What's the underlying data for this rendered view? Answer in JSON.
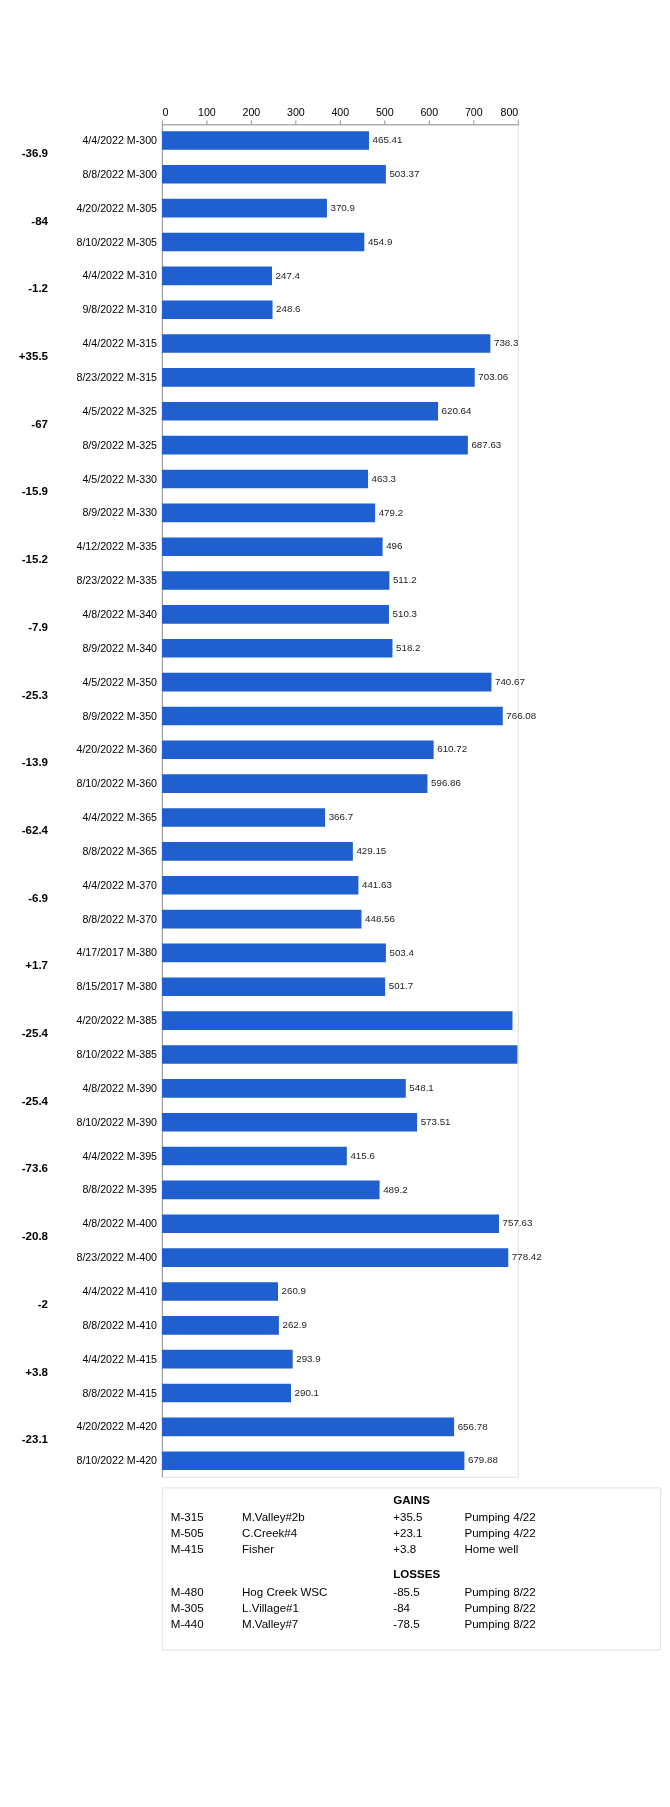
{
  "chart_data": {
    "type": "bar",
    "orientation": "horizontal",
    "categories": [
      "4/4/2022 M-300",
      "8/8/2022 M-300",
      "4/20/2022 M-305",
      "8/10/2022 M-305",
      "4/4/2022 M-310",
      "9/8/2022 M-310",
      "4/4/2022 M-315",
      "8/23/2022 M-315",
      "4/5/2022 M-325",
      "8/9/2022 M-325",
      "4/5/2022 M-330",
      "8/9/2022 M-330",
      "4/12/2022 M-335",
      "8/23/2022 M-335",
      "4/8/2022 M-340",
      "8/9/2022 M-340",
      "4/5/2022 M-350",
      "8/9/2022 M-350",
      "4/20/2022 M-360",
      "8/10/2022 M-360",
      "4/4/2022 M-365",
      "8/8/2022 M-365",
      "4/4/2022 M-370",
      "8/8/2022 M-370",
      "4/17/2017 M-380",
      "8/15/2017 M-380",
      "4/20/2022 M-385",
      "8/10/2022 M-385",
      "4/8/2022 M-390",
      "8/10/2022 M-390",
      "4/4/2022 M-395",
      "8/8/2022 M-395",
      "4/8/2022 M-400",
      "8/23/2022 M-400",
      "4/4/2022 M-410",
      "8/8/2022 M-410",
      "4/4/2022 M-415",
      "8/8/2022 M-415",
      "4/20/2022 M-420",
      "8/10/2022 M-420"
    ],
    "values": [
      465.41,
      503.37,
      370.9,
      454.9,
      247.4,
      248.6,
      738.3,
      703.06,
      620.64,
      687.63,
      463.3,
      479.2,
      496,
      511.2,
      510.3,
      518.2,
      740.67,
      766.08,
      610.72,
      596.86,
      366.7,
      429.15,
      441.63,
      448.56,
      503.4,
      501.7,
      788,
      799,
      548.1,
      573.51,
      415.6,
      489.2,
      757.63,
      778.42,
      260.9,
      262.9,
      293.9,
      290.1,
      656.78,
      679.88
    ],
    "value_labels": [
      "465.41",
      "503.37",
      "370.9",
      "454.9",
      "247.4",
      "248.6",
      "738.3",
      "703.06",
      "620.64",
      "687.63",
      "463.3",
      "479.2",
      "496",
      "511.2",
      "510.3",
      "518.2",
      "740.67",
      "766.08",
      "610.72",
      "596.86",
      "366.7",
      "429.15",
      "441.63",
      "448.56",
      "503.4",
      "501.7",
      null,
      null,
      "548.1",
      "573.51",
      "415.6",
      "489.2",
      "757.63",
      "778.42",
      "260.9",
      "262.9",
      "293.9",
      "290.1",
      "656.78",
      "679.88"
    ],
    "color": "#1f5fcf",
    "xlim": [
      0,
      800
    ],
    "xticks": [
      0,
      100,
      200,
      300,
      400,
      500,
      600,
      700,
      800
    ],
    "grid": false,
    "annotations": [
      "-36.9",
      "-84",
      "-1.2",
      "+35.5",
      "-67",
      "-15.9",
      "-15.2",
      "-7.9",
      "-25.3",
      "-13.9",
      "-62.4",
      "-6.9",
      "+1.7",
      "-25.4",
      "-25.4",
      "-73.6",
      "-20.8",
      "-2",
      "+3.8",
      "-23.1",
      "GAINS",
      "M-315",
      "M.Valley#2b",
      "+35.5",
      "Pumping 4/22",
      "M-505",
      "C.Creek#4",
      "+23.1",
      "Pumping 4/22",
      "M-415",
      "Fisher",
      "+3.8",
      "Home well",
      "LOSSES",
      "M-480",
      "Hog Creek WSC",
      "-85.5",
      "Pumping 8/22",
      "M-305",
      "L.Village#1",
      "-84",
      "Pumping 8/22",
      "M-440",
      "M.Valley#7",
      "-78.5",
      "Pumping 8/22"
    ]
  }
}
